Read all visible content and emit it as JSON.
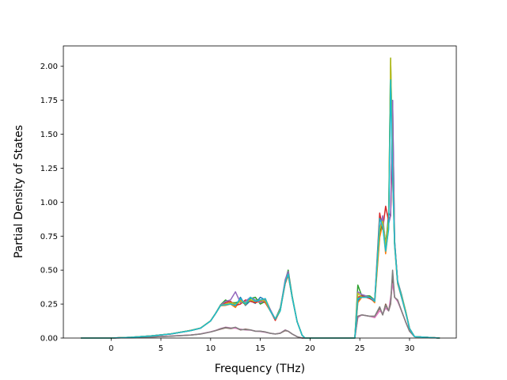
{
  "chart_data": {
    "type": "line",
    "title": "",
    "xlabel": "Frequency (THz)",
    "ylabel": "Partial Density of States",
    "xlim": [
      -4.8,
      34.7
    ],
    "ylim": [
      0.0,
      2.15
    ],
    "xticks": [
      0,
      5,
      10,
      15,
      20,
      25,
      30
    ],
    "xtick_labels": [
      "0",
      "5",
      "10",
      "15",
      "20",
      "25",
      "30"
    ],
    "yticks": [
      0.0,
      0.25,
      0.5,
      0.75,
      1.0,
      1.25,
      1.5,
      1.75,
      2.0
    ],
    "ytick_labels": [
      "0.00",
      "0.25",
      "0.50",
      "0.75",
      "1.00",
      "1.25",
      "1.50",
      "1.75",
      "2.00"
    ],
    "grid": false,
    "legend": "none",
    "colors": [
      "#1f77b4",
      "#ff7f0e",
      "#2ca02c",
      "#d62728",
      "#9467bd",
      "#8c564b",
      "#e377c2",
      "#7f7f7f",
      "#bcbd22",
      "#17becf"
    ],
    "series": [
      {
        "x": [
          -3,
          0,
          2,
          4,
          6,
          8,
          9,
          10,
          10.5,
          11,
          11.5,
          12,
          12.5,
          13,
          13.5,
          14,
          14.5,
          15,
          15.5,
          16,
          16.5,
          17,
          17.5,
          17.8,
          18.2,
          18.7,
          19.2,
          19.5,
          24.5,
          24.8,
          25.2,
          26,
          26.5,
          27,
          27.3,
          27.6,
          27.9,
          28.1,
          28.3,
          28.5,
          28.8,
          29.2,
          29.6,
          30,
          30.5,
          33
        ],
        "y": [
          0,
          0,
          0.006,
          0.016,
          0.031,
          0.056,
          0.074,
          0.126,
          0.18,
          0.24,
          0.25,
          0.255,
          0.23,
          0.3,
          0.24,
          0.275,
          0.255,
          0.3,
          0.28,
          0.2,
          0.14,
          0.22,
          0.41,
          0.48,
          0.3,
          0.12,
          0.02,
          0,
          0,
          0.27,
          0.32,
          0.3,
          0.27,
          0.76,
          0.88,
          0.66,
          0.92,
          0.9,
          1.75,
          0.72,
          0.42,
          0.32,
          0.2,
          0.07,
          0.01,
          0
        ]
      },
      {
        "x": [
          -3,
          0,
          2,
          4,
          6,
          8,
          9,
          10,
          10.5,
          11,
          11.5,
          12,
          12.5,
          13,
          13.5,
          14,
          14.5,
          15,
          15.5,
          16,
          16.5,
          17,
          17.5,
          17.8,
          18.2,
          18.7,
          19.2,
          19.5,
          24.5,
          24.8,
          25.2,
          26,
          26.5,
          27,
          27.3,
          27.6,
          27.9,
          28.1,
          28.3,
          28.5,
          28.8,
          29.2,
          29.6,
          30,
          30.5,
          33
        ],
        "y": [
          0,
          0,
          0.005,
          0.015,
          0.03,
          0.055,
          0.073,
          0.125,
          0.18,
          0.238,
          0.24,
          0.25,
          0.225,
          0.28,
          0.245,
          0.3,
          0.26,
          0.27,
          0.29,
          0.21,
          0.13,
          0.2,
          0.4,
          0.46,
          0.3,
          0.12,
          0.02,
          0,
          0,
          0.26,
          0.3,
          0.3,
          0.26,
          0.74,
          0.84,
          0.62,
          0.82,
          1.96,
          1.2,
          0.68,
          0.4,
          0.3,
          0.19,
          0.07,
          0.01,
          0
        ]
      },
      {
        "x": [
          -3,
          0,
          2,
          4,
          6,
          8,
          9,
          10,
          10.5,
          11,
          11.5,
          12,
          12.5,
          13,
          13.5,
          14,
          14.5,
          15,
          15.5,
          16,
          16.5,
          17,
          17.5,
          17.8,
          18.2,
          18.7,
          19.2,
          19.5,
          24.5,
          24.8,
          25.2,
          26,
          26.5,
          27,
          27.3,
          27.6,
          27.9,
          28.1,
          28.3,
          28.5,
          28.8,
          29.2,
          29.6,
          30,
          30.5,
          33
        ],
        "y": [
          0,
          0,
          0.006,
          0.016,
          0.031,
          0.056,
          0.074,
          0.127,
          0.182,
          0.245,
          0.28,
          0.26,
          0.26,
          0.27,
          0.25,
          0.29,
          0.3,
          0.25,
          0.27,
          0.2,
          0.14,
          0.2,
          0.42,
          0.5,
          0.31,
          0.12,
          0.02,
          0,
          0,
          0.39,
          0.31,
          0.31,
          0.28,
          0.78,
          0.86,
          0.7,
          0.88,
          2.06,
          1.3,
          0.7,
          0.42,
          0.31,
          0.2,
          0.07,
          0.01,
          0
        ]
      },
      {
        "x": [
          -3,
          0,
          2,
          4,
          6,
          8,
          9,
          10,
          10.5,
          11,
          11.5,
          12,
          12.5,
          13,
          13.5,
          14,
          14.5,
          15,
          15.5,
          16,
          16.5,
          17,
          17.5,
          17.8,
          18.2,
          18.7,
          19.2,
          19.5,
          24.5,
          24.8,
          25.2,
          26,
          26.5,
          27,
          27.3,
          27.6,
          27.9,
          28.1,
          28.3,
          28.5,
          28.8,
          29.2,
          29.6,
          30,
          30.5,
          33
        ],
        "y": [
          0,
          0,
          0.005,
          0.015,
          0.03,
          0.055,
          0.073,
          0.126,
          0.18,
          0.24,
          0.26,
          0.27,
          0.24,
          0.25,
          0.28,
          0.27,
          0.26,
          0.28,
          0.26,
          0.2,
          0.13,
          0.21,
          0.4,
          0.47,
          0.3,
          0.12,
          0.02,
          0,
          0,
          0.3,
          0.31,
          0.29,
          0.27,
          0.92,
          0.8,
          0.97,
          0.86,
          0.9,
          1.5,
          0.7,
          0.41,
          0.3,
          0.19,
          0.07,
          0.01,
          0
        ]
      },
      {
        "x": [
          -3,
          0,
          2,
          4,
          6,
          8,
          9,
          10,
          10.5,
          11,
          11.5,
          12,
          12.5,
          13,
          13.5,
          14,
          14.5,
          15,
          15.5,
          16,
          16.5,
          17,
          17.5,
          17.8,
          18.2,
          18.7,
          19.2,
          19.5,
          24.5,
          24.8,
          25.2,
          26,
          26.5,
          27,
          27.3,
          27.6,
          27.9,
          28.1,
          28.3,
          28.5,
          28.8,
          29.2,
          29.6,
          30,
          30.5,
          33
        ],
        "y": [
          0,
          0,
          0.006,
          0.016,
          0.031,
          0.056,
          0.074,
          0.126,
          0.181,
          0.242,
          0.27,
          0.28,
          0.34,
          0.26,
          0.27,
          0.3,
          0.28,
          0.26,
          0.28,
          0.21,
          0.14,
          0.21,
          0.43,
          0.49,
          0.3,
          0.12,
          0.02,
          0,
          0,
          0.34,
          0.32,
          0.3,
          0.28,
          0.8,
          0.9,
          0.68,
          0.84,
          0.9,
          1.75,
          0.72,
          0.42,
          0.31,
          0.2,
          0.07,
          0.01,
          0
        ]
      },
      {
        "x": [
          -3,
          0,
          2,
          4,
          6,
          8,
          9,
          10,
          10.5,
          11,
          11.5,
          12,
          12.5,
          13,
          13.5,
          14,
          14.5,
          15,
          15.5,
          16,
          16.5,
          17,
          17.5,
          17.8,
          18.2,
          18.7,
          19.2,
          19.5,
          24.5,
          24.8,
          25.2,
          26,
          26.5,
          27,
          27.3,
          27.6,
          27.9,
          28.1,
          28.3,
          28.5,
          28.8,
          29.2,
          29.6,
          30,
          30.5,
          33
        ],
        "y": [
          0,
          0,
          0.003,
          0.008,
          0.014,
          0.022,
          0.03,
          0.045,
          0.055,
          0.065,
          0.075,
          0.07,
          0.075,
          0.06,
          0.065,
          0.06,
          0.05,
          0.05,
          0.045,
          0.035,
          0.03,
          0.035,
          0.055,
          0.05,
          0.03,
          0.01,
          0,
          0,
          0,
          0.16,
          0.17,
          0.16,
          0.16,
          0.22,
          0.17,
          0.25,
          0.2,
          0.25,
          0.46,
          0.3,
          0.28,
          0.2,
          0.12,
          0.05,
          0.01,
          0
        ]
      },
      {
        "x": [
          -3,
          0,
          2,
          4,
          6,
          8,
          9,
          10,
          10.5,
          11,
          11.5,
          12,
          12.5,
          13,
          13.5,
          14,
          14.5,
          15,
          15.5,
          16,
          16.5,
          17,
          17.5,
          17.8,
          18.2,
          18.7,
          19.2,
          19.5,
          24.5,
          24.8,
          25.2,
          26,
          26.5,
          27,
          27.3,
          27.6,
          27.9,
          28.1,
          28.3,
          28.5,
          28.8,
          29.2,
          29.6,
          30,
          30.5,
          33
        ],
        "y": [
          0,
          0,
          0.003,
          0.008,
          0.015,
          0.023,
          0.031,
          0.046,
          0.056,
          0.07,
          0.08,
          0.075,
          0.072,
          0.065,
          0.06,
          0.058,
          0.052,
          0.048,
          0.042,
          0.035,
          0.03,
          0.036,
          0.06,
          0.05,
          0.03,
          0.01,
          0,
          0,
          0,
          0.15,
          0.17,
          0.16,
          0.15,
          0.2,
          0.18,
          0.22,
          0.2,
          0.3,
          0.4,
          0.3,
          0.27,
          0.2,
          0.12,
          0.05,
          0.01,
          0
        ]
      },
      {
        "x": [
          -3,
          0,
          2,
          4,
          6,
          8,
          9,
          10,
          10.5,
          11,
          11.5,
          12,
          12.5,
          13,
          13.5,
          14,
          14.5,
          15,
          15.5,
          16,
          16.5,
          17,
          17.5,
          17.8,
          18.2,
          18.7,
          19.2,
          19.5,
          24.5,
          24.8,
          25.2,
          26,
          26.5,
          27,
          27.3,
          27.6,
          27.9,
          28.1,
          28.3,
          28.5,
          28.8,
          29.2,
          29.6,
          30,
          30.5,
          33
        ],
        "y": [
          0,
          0,
          0.003,
          0.008,
          0.014,
          0.022,
          0.03,
          0.045,
          0.055,
          0.068,
          0.078,
          0.072,
          0.08,
          0.062,
          0.062,
          0.06,
          0.05,
          0.05,
          0.044,
          0.035,
          0.03,
          0.035,
          0.058,
          0.05,
          0.03,
          0.01,
          0,
          0,
          0,
          0.16,
          0.17,
          0.16,
          0.16,
          0.23,
          0.17,
          0.24,
          0.2,
          0.26,
          0.5,
          0.3,
          0.28,
          0.2,
          0.12,
          0.05,
          0.01,
          0
        ]
      },
      {
        "x": [
          -3,
          0,
          2,
          4,
          6,
          8,
          9,
          10,
          10.5,
          11,
          11.5,
          12,
          12.5,
          13,
          13.5,
          14,
          14.5,
          15,
          15.5,
          16,
          16.5,
          17,
          17.5,
          17.8,
          18.2,
          18.7,
          19.2,
          19.5,
          24.5,
          24.8,
          25.2,
          26,
          26.5,
          27,
          27.3,
          27.6,
          27.9,
          28.1,
          28.3,
          28.5,
          28.8,
          29.2,
          29.6,
          30,
          30.5,
          33
        ],
        "y": [
          0,
          0,
          0.006,
          0.016,
          0.031,
          0.056,
          0.074,
          0.126,
          0.18,
          0.24,
          0.25,
          0.26,
          0.25,
          0.27,
          0.26,
          0.28,
          0.27,
          0.28,
          0.27,
          0.2,
          0.14,
          0.21,
          0.41,
          0.47,
          0.3,
          0.12,
          0.02,
          0,
          0,
          0.33,
          0.3,
          0.3,
          0.27,
          0.8,
          0.86,
          0.68,
          0.86,
          2.06,
          1.25,
          0.7,
          0.41,
          0.31,
          0.2,
          0.07,
          0.01,
          0
        ]
      },
      {
        "x": [
          -3,
          0,
          2,
          4,
          6,
          8,
          9,
          10,
          10.5,
          11,
          11.5,
          12,
          12.5,
          13,
          13.5,
          14,
          14.5,
          15,
          15.5,
          16,
          16.5,
          17,
          17.5,
          17.8,
          18.2,
          18.7,
          19.2,
          19.5,
          24.5,
          24.8,
          25.2,
          26,
          26.5,
          27,
          27.3,
          27.6,
          27.9,
          28.1,
          28.3,
          28.5,
          28.8,
          29.2,
          29.6,
          30,
          30.5,
          33
        ],
        "y": [
          0,
          0,
          0.005,
          0.015,
          0.03,
          0.055,
          0.073,
          0.125,
          0.18,
          0.24,
          0.245,
          0.25,
          0.24,
          0.29,
          0.25,
          0.3,
          0.27,
          0.28,
          0.29,
          0.2,
          0.14,
          0.2,
          0.41,
          0.47,
          0.3,
          0.12,
          0.02,
          0,
          0,
          0.29,
          0.3,
          0.3,
          0.27,
          0.88,
          0.82,
          0.64,
          0.8,
          1.9,
          1.2,
          0.69,
          0.41,
          0.3,
          0.19,
          0.07,
          0.01,
          0
        ]
      }
    ]
  }
}
